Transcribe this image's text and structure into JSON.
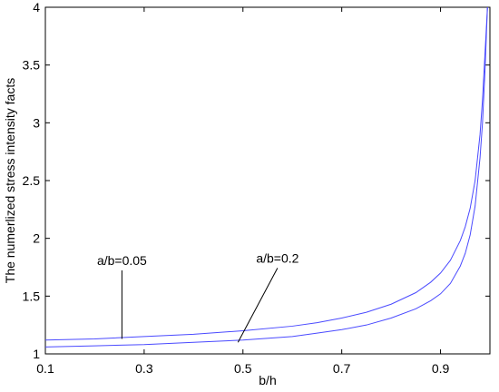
{
  "chart_data": {
    "type": "line",
    "xlabel": "b/h",
    "ylabel": "The numerlized stress intensity facts",
    "xlim": [
      0.1,
      1.0
    ],
    "ylim": [
      1.0,
      4.0
    ],
    "xticks": [
      0.1,
      0.3,
      0.5,
      0.7,
      0.9
    ],
    "xtick_labels": [
      "0.1",
      "0.3",
      "0.5",
      "0.7",
      "0.9"
    ],
    "yticks": [
      1.0,
      1.5,
      2.0,
      2.5,
      3.0,
      3.5,
      4.0
    ],
    "ytick_labels": [
      "1",
      "1.5",
      "2",
      "2.5",
      "3",
      "3.5",
      "4"
    ],
    "grid": false,
    "line_color": "#4a4aff",
    "series": [
      {
        "name": "a/b=0.05",
        "x": [
          0.1,
          0.2,
          0.3,
          0.4,
          0.5,
          0.6,
          0.65,
          0.7,
          0.75,
          0.8,
          0.85,
          0.88,
          0.9,
          0.92,
          0.94,
          0.95,
          0.96,
          0.97,
          0.98,
          0.985,
          0.99,
          0.995
        ],
        "y": [
          1.12,
          1.13,
          1.15,
          1.17,
          1.2,
          1.24,
          1.27,
          1.31,
          1.36,
          1.43,
          1.53,
          1.62,
          1.7,
          1.81,
          1.98,
          2.1,
          2.26,
          2.5,
          2.9,
          3.2,
          3.6,
          4.0
        ]
      },
      {
        "name": "a/b=0.2",
        "x": [
          0.1,
          0.2,
          0.3,
          0.4,
          0.5,
          0.6,
          0.65,
          0.7,
          0.75,
          0.8,
          0.85,
          0.88,
          0.9,
          0.92,
          0.94,
          0.95,
          0.96,
          0.97,
          0.98,
          0.985,
          0.99,
          0.995
        ],
        "y": [
          1.06,
          1.07,
          1.08,
          1.1,
          1.12,
          1.15,
          1.18,
          1.21,
          1.25,
          1.31,
          1.39,
          1.46,
          1.52,
          1.61,
          1.76,
          1.87,
          2.03,
          2.28,
          2.7,
          3.0,
          3.45,
          4.0
        ]
      }
    ],
    "annotations": [
      {
        "text": "a/b=0.05",
        "series": 0,
        "text_at": [
          0.255,
          1.77
        ],
        "point_at": [
          0.255,
          1.13
        ]
      },
      {
        "text": "a/b=0.2",
        "series": 1,
        "text_at": [
          0.57,
          1.79
        ],
        "point_at": [
          0.49,
          1.1
        ]
      }
    ]
  }
}
